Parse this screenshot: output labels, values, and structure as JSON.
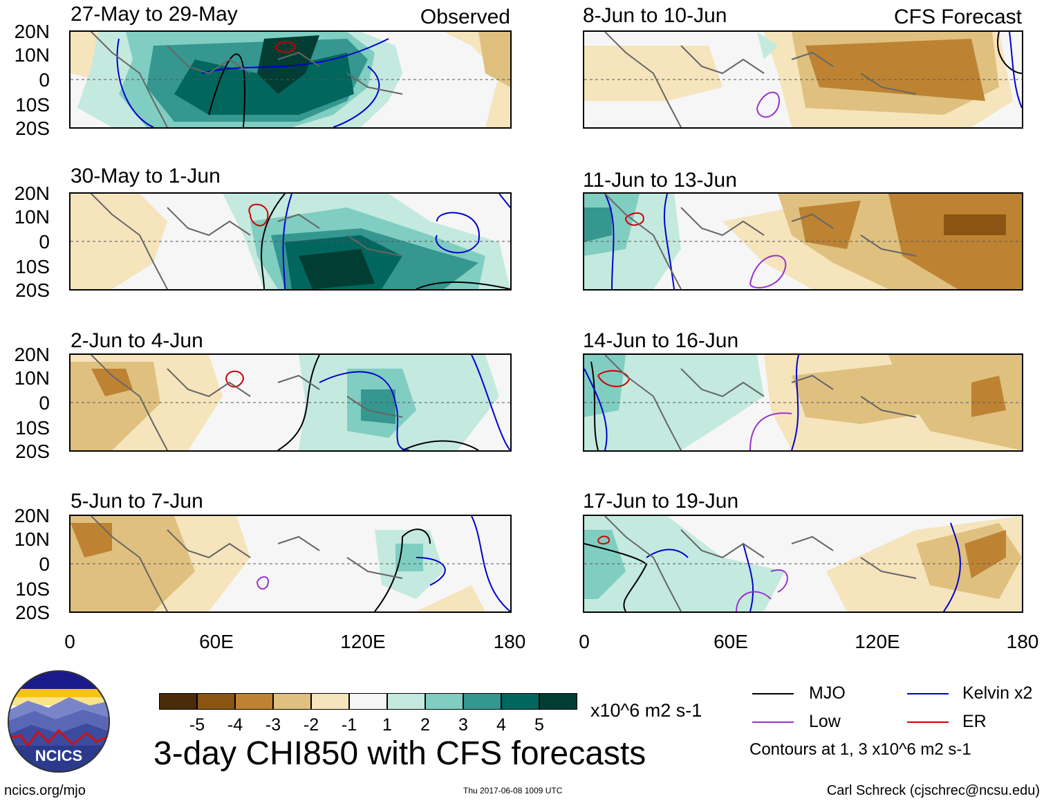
{
  "columns": {
    "observed_label": "Observed",
    "forecast_label": "CFS Forecast"
  },
  "panels_left": [
    {
      "title": "27-May to 29-May"
    },
    {
      "title": "30-May to 1-Jun"
    },
    {
      "title": "2-Jun to 4-Jun"
    },
    {
      "title": "5-Jun to 7-Jun"
    }
  ],
  "panels_right": [
    {
      "title": "8-Jun to 10-Jun"
    },
    {
      "title": "11-Jun to 13-Jun"
    },
    {
      "title": "14-Jun to 16-Jun"
    },
    {
      "title": "17-Jun to 19-Jun"
    }
  ],
  "lat_labels": [
    "20N",
    "10N",
    "0",
    "10S",
    "20S"
  ],
  "lon_labels": [
    "0",
    "60E",
    "120E",
    "180"
  ],
  "colorbar": {
    "ticks": [
      "-5",
      "-4",
      "-3",
      "-2",
      "-1",
      "1",
      "2",
      "3",
      "4",
      "5"
    ],
    "colors": [
      "#4a2c0a",
      "#8a5512",
      "#bd8333",
      "#dfc07f",
      "#f5e4bc",
      "#f6f6f6",
      "#c4e9df",
      "#80cdc1",
      "#35978f",
      "#01665e",
      "#013d32"
    ],
    "units": "x10^6 m2 s-1"
  },
  "title": "3-day CHI850 with CFS forecasts",
  "legend": {
    "items": [
      {
        "label": "MJO",
        "color": "#000000"
      },
      {
        "label": "Kelvin x2",
        "color": "#0000cc"
      },
      {
        "label": "Low",
        "color": "#9932cc"
      },
      {
        "label": "ER",
        "color": "#cc0000"
      }
    ],
    "contours_note": "Contours at 1, 3 x10^6 m2 s-1"
  },
  "logo": {
    "text": "NCICS"
  },
  "footer": {
    "site": "ncics.org/mjo",
    "timestamp": "Thu 2017-06-08 1009 UTC",
    "author": "Carl Schreck (cjschrec@ncsu.edu)"
  }
}
